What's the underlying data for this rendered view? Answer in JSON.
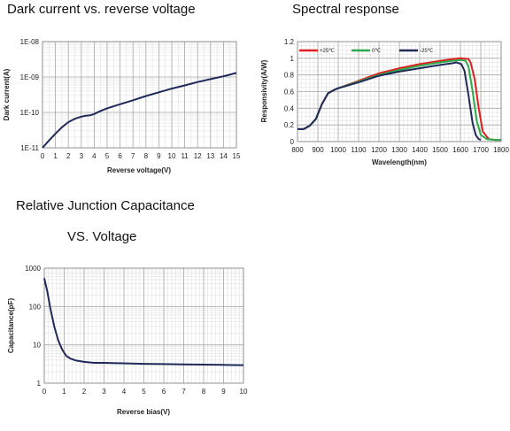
{
  "titles": {
    "dark": "Dark current vs. reverse voltage",
    "spectral": "Spectral response",
    "cap_line1": "Relative Junction Capacitance",
    "cap_line2": "VS. Voltage"
  },
  "chart_data": [
    {
      "type": "line",
      "title": "Dark current vs. reverse voltage",
      "xlabel": "Reverse voltage(V)",
      "ylabel": "Dark current(A)",
      "xlim": [
        0,
        15
      ],
      "ylim": [
        1e-11,
        1e-08
      ],
      "yscale": "log",
      "x_ticks": [
        "0",
        "1",
        "2",
        "3",
        "4",
        "5",
        "6",
        "7",
        "8",
        "9",
        "10",
        "11",
        "12",
        "13",
        "14",
        "15"
      ],
      "y_ticks": [
        "1E-11",
        "1E-10",
        "1E-09",
        "1E-08"
      ],
      "grid": true,
      "series": [
        {
          "color": "#1f2a5a",
          "x": [
            0,
            0.5,
            1,
            1.5,
            2,
            2.5,
            3,
            3.3,
            3.7,
            4,
            4.5,
            5,
            6,
            7,
            8,
            9,
            10,
            11,
            12,
            13,
            14,
            15
          ],
          "y": [
            1e-11,
            1.6e-11,
            2.5e-11,
            3.8e-11,
            5.3e-11,
            6.6e-11,
            7.6e-11,
            8e-11,
            8.3e-11,
            9e-11,
            1.1e-10,
            1.3e-10,
            1.7e-10,
            2.2e-10,
            2.9e-10,
            3.7e-10,
            4.7e-10,
            5.8e-10,
            7.2e-10,
            8.7e-10,
            1.05e-09,
            1.3e-09
          ]
        }
      ]
    },
    {
      "type": "line",
      "title": "Spectral response",
      "xlabel": "Wavelength(nm)",
      "ylabel": "Responsivity(A/W)",
      "xlim": [
        800,
        1800
      ],
      "ylim": [
        0,
        1.2
      ],
      "x_ticks": [
        "800",
        "900",
        "1000",
        "1100",
        "1200",
        "1300",
        "1400",
        "1500",
        "1600",
        "1700",
        "1800"
      ],
      "y_ticks": [
        "0",
        "0.2",
        "0.4",
        "0.6",
        "0.8",
        "1",
        "1.2"
      ],
      "grid": true,
      "legend": "top",
      "series": [
        {
          "name": "+25℃",
          "color": "#e02020",
          "x": [
            800,
            830,
            860,
            890,
            920,
            950,
            980,
            1000,
            1100,
            1200,
            1300,
            1400,
            1500,
            1560,
            1600,
            1640,
            1650,
            1670,
            1690,
            1710,
            1740,
            1770,
            1800
          ],
          "y": [
            0.15,
            0.15,
            0.19,
            0.27,
            0.45,
            0.58,
            0.62,
            0.64,
            0.73,
            0.82,
            0.88,
            0.93,
            0.97,
            0.99,
            1.0,
            0.99,
            0.95,
            0.75,
            0.4,
            0.12,
            0.03,
            0.02,
            0.02
          ]
        },
        {
          "name": "0℃",
          "color": "#2aaa4a",
          "x": [
            800,
            830,
            860,
            890,
            920,
            950,
            980,
            1000,
            1100,
            1200,
            1300,
            1400,
            1500,
            1560,
            1600,
            1625,
            1640,
            1660,
            1680,
            1700,
            1730,
            1770,
            1800
          ],
          "y": [
            0.15,
            0.15,
            0.19,
            0.27,
            0.45,
            0.58,
            0.62,
            0.64,
            0.72,
            0.8,
            0.86,
            0.91,
            0.95,
            0.97,
            0.98,
            0.97,
            0.9,
            0.6,
            0.25,
            0.08,
            0.03,
            0.02,
            0.02
          ]
        },
        {
          "name": "-25℃",
          "color": "#1f2a5a",
          "x": [
            800,
            830,
            860,
            890,
            920,
            950,
            980,
            1000,
            1100,
            1200,
            1300,
            1400,
            1500,
            1560,
            1580,
            1605,
            1620,
            1640,
            1660,
            1675,
            1690,
            1700
          ],
          "y": [
            0.15,
            0.15,
            0.19,
            0.27,
            0.45,
            0.58,
            0.62,
            0.64,
            0.71,
            0.79,
            0.84,
            0.88,
            0.92,
            0.94,
            0.95,
            0.93,
            0.85,
            0.55,
            0.22,
            0.08,
            0.03,
            0.02
          ]
        }
      ]
    },
    {
      "type": "line",
      "title": "Relative Junction Capacitance VS. Voltage",
      "xlabel": "Reverse bias(V)",
      "ylabel": "Capacitance(pF)",
      "xlim": [
        0,
        10
      ],
      "ylim": [
        1,
        1000
      ],
      "yscale": "log",
      "x_ticks": [
        "0",
        "1",
        "2",
        "3",
        "4",
        "5",
        "6",
        "7",
        "8",
        "9",
        "10"
      ],
      "y_ticks": [
        "1",
        "10",
        "100",
        "1000"
      ],
      "grid": true,
      "series": [
        {
          "color": "#1f2a5a",
          "x": [
            0,
            0.15,
            0.3,
            0.5,
            0.7,
            0.9,
            1.1,
            1.3,
            1.6,
            2,
            2.5,
            3,
            4,
            5,
            6,
            7,
            8,
            9,
            10
          ],
          "y": [
            550,
            250,
            90,
            30,
            13,
            7.5,
            5.2,
            4.4,
            3.9,
            3.6,
            3.4,
            3.4,
            3.3,
            3.2,
            3.15,
            3.1,
            3.05,
            3.0,
            2.95
          ]
        }
      ]
    }
  ]
}
